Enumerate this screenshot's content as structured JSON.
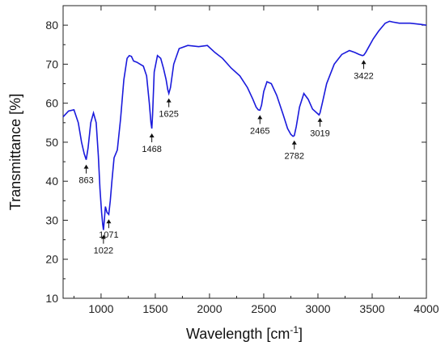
{
  "chart_data": {
    "type": "line",
    "xlabel": "Wavelength [cm",
    "xlabel_sup": "-1",
    "xlabel_close": "]",
    "ylabel": "Transmittance [%]",
    "xlim": [
      650,
      4000
    ],
    "ylim": [
      10,
      85
    ],
    "x_ticks": [
      1000,
      1500,
      2000,
      2500,
      3000,
      3500,
      4000
    ],
    "y_ticks": [
      10,
      20,
      30,
      40,
      50,
      60,
      70,
      80
    ],
    "x_tick_labels": [
      "1000",
      "1500",
      "2000",
      "2500",
      "3000",
      "3500",
      "4000"
    ],
    "y_tick_labels": [
      "10",
      "20",
      "30",
      "40",
      "50",
      "60",
      "70",
      "80"
    ],
    "line_color": "#1a1adc",
    "grid": false,
    "series": [
      {
        "x": [
          650,
          700,
          750,
          790,
          820,
          845,
          863,
          880,
          905,
          930,
          955,
          975,
          990,
          1005,
          1015,
          1022,
          1030,
          1040,
          1055,
          1071,
          1085,
          1100,
          1120,
          1150,
          1180,
          1210,
          1240,
          1260,
          1280,
          1300,
          1330,
          1360,
          1390,
          1420,
          1445,
          1460,
          1468,
          1475,
          1490,
          1520,
          1550,
          1575,
          1600,
          1615,
          1625,
          1640,
          1670,
          1720,
          1800,
          1900,
          1980,
          2050,
          2120,
          2200,
          2280,
          2350,
          2400,
          2430,
          2450,
          2465,
          2480,
          2500,
          2530,
          2570,
          2620,
          2680,
          2720,
          2750,
          2770,
          2782,
          2800,
          2830,
          2870,
          2910,
          2950,
          2990,
          3010,
          3019,
          3040,
          3080,
          3150,
          3220,
          3290,
          3340,
          3380,
          3410,
          3422,
          3440,
          3470,
          3510,
          3560,
          3620,
          3660,
          3690,
          3750,
          3850,
          3950,
          4000
        ],
        "values": [
          56.5,
          58,
          58.3,
          55,
          50,
          47,
          45.5,
          48.5,
          55,
          57.5,
          55,
          46.5,
          38,
          32,
          29,
          27.5,
          30,
          33.5,
          32,
          31.5,
          35,
          40,
          46,
          48,
          56,
          66,
          71.5,
          72.2,
          72,
          70.8,
          70.5,
          70,
          69.5,
          67,
          60,
          55,
          53.5,
          57,
          68,
          72.2,
          71.5,
          69,
          66,
          63.5,
          62.5,
          64,
          70,
          74,
          74.8,
          74.5,
          74.8,
          73,
          71.5,
          69,
          67,
          64,
          61,
          59,
          58.3,
          58.2,
          59.5,
          63,
          65.5,
          65,
          62,
          57,
          53.5,
          52,
          51.5,
          51.7,
          54,
          59,
          62.5,
          61,
          58.5,
          57.5,
          57,
          57.5,
          60,
          65,
          70,
          72.5,
          73.5,
          73,
          72.5,
          72.2,
          72.3,
          73,
          74.5,
          76.5,
          78.5,
          80.5,
          81,
          80.8,
          80.5,
          80.5,
          80.2,
          80
        ]
      }
    ],
    "annotations": [
      {
        "label": "863",
        "x": 863,
        "y": 45.5
      },
      {
        "label": "1022",
        "x": 1022,
        "y": 27.5
      },
      {
        "label": "1071",
        "x": 1071,
        "y": 31.5
      },
      {
        "label": "1468",
        "x": 1468,
        "y": 53.5
      },
      {
        "label": "1625",
        "x": 1625,
        "y": 62.5
      },
      {
        "label": "2465",
        "x": 2465,
        "y": 58.2
      },
      {
        "label": "2782",
        "x": 2782,
        "y": 51.7
      },
      {
        "label": "3019",
        "x": 3019,
        "y": 57.5
      },
      {
        "label": "3422",
        "x": 3422,
        "y": 72.3
      }
    ]
  }
}
